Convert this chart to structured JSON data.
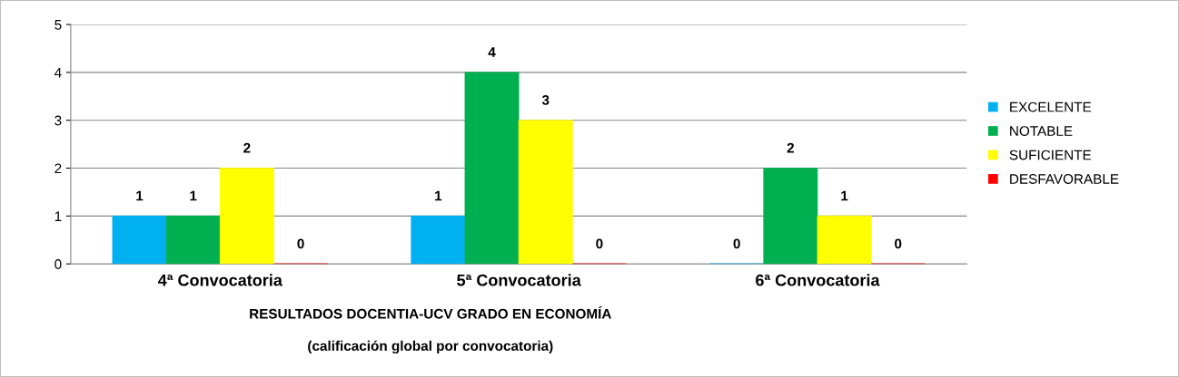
{
  "chart_data": {
    "type": "bar",
    "title": "RESULTADOS DOCENTIA-UCV GRADO EN ECONOMÍA",
    "subtitle": "(calificación global por convocatoria)",
    "categories": [
      "4ª Convocatoria",
      "5ª Convocatoria",
      "6ª Convocatoria"
    ],
    "series": [
      {
        "name": "EXCELENTE",
        "color": "#00b0f0",
        "values": [
          1,
          1,
          0
        ]
      },
      {
        "name": "NOTABLE",
        "color": "#00b050",
        "values": [
          1,
          4,
          2
        ]
      },
      {
        "name": "SUFICIENTE",
        "color": "#ffff00",
        "values": [
          2,
          3,
          1
        ]
      },
      {
        "name": "DESFAVORABLE",
        "color": "#ff0000",
        "values": [
          0,
          0,
          0
        ]
      }
    ],
    "ylim": [
      0,
      5
    ],
    "yticks": [
      0,
      1,
      2,
      3,
      4,
      5
    ],
    "grid": "y",
    "legend": "right",
    "data_labels": true
  }
}
